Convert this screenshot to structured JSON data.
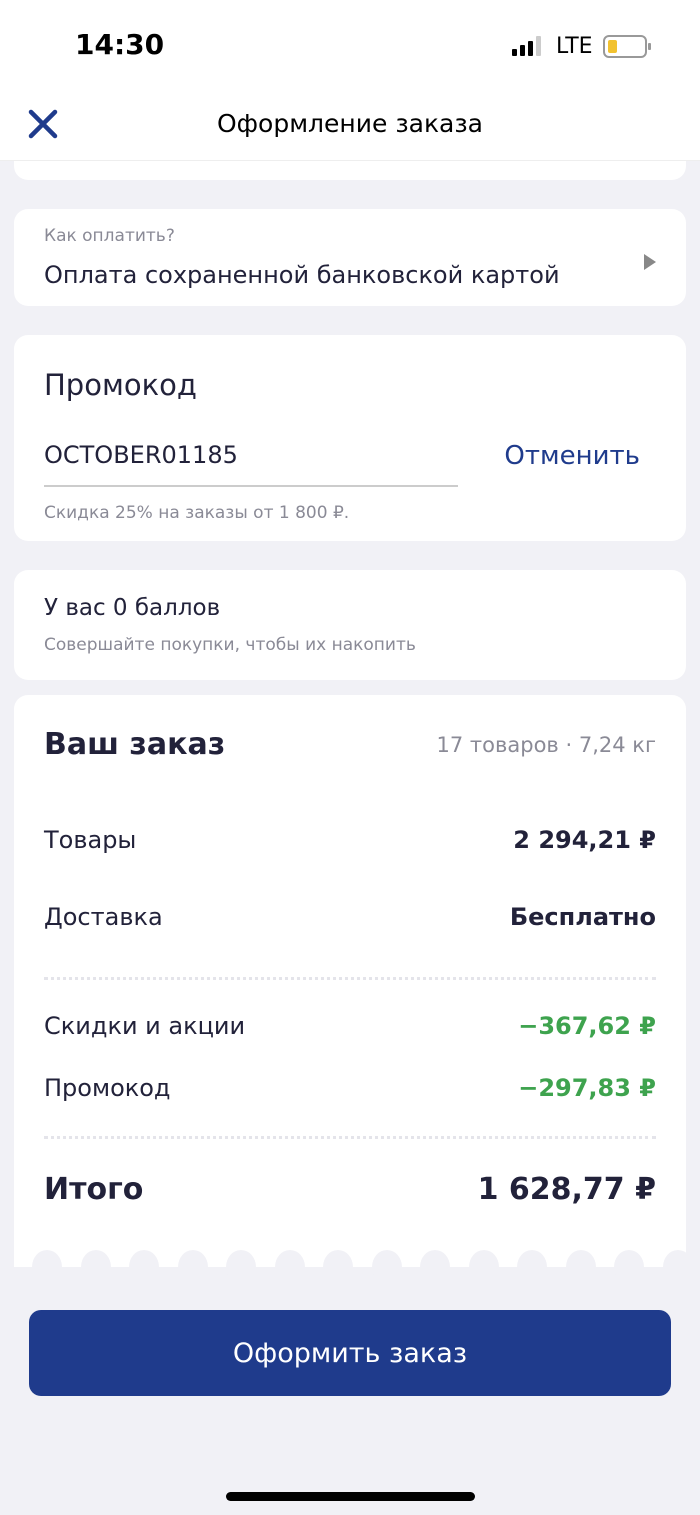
{
  "status_bar": {
    "time": "14:30",
    "network": "LTE",
    "battery_level": 0.2
  },
  "header": {
    "title": "Оформление заказа",
    "close_icon": "close-icon"
  },
  "payment": {
    "label": "Как оплатить?",
    "value": "Оплата сохраненной банковской картой"
  },
  "promo": {
    "title": "Промокод",
    "code": "OCTOBER01185",
    "cancel_label": "Отменить",
    "hint": "Скидка 25% на заказы от 1 800 ₽."
  },
  "points": {
    "title": "У вас 0 баллов",
    "subtitle": "Совершайте покупки, чтобы их накопить"
  },
  "order": {
    "title": "Ваш заказ",
    "meta": "17 товаров · 7,24 кг",
    "goods_label": "Товары",
    "goods_value": "2 294,21 ₽",
    "delivery_label": "Доставка",
    "delivery_value": "Бесплатно",
    "discounts_label": "Скидки и акции",
    "discounts_value": "−367,62 ₽",
    "promo_label": "Промокод",
    "promo_value": "−297,83 ₽",
    "total_label": "Итого",
    "total_value": "1 628,77 ₽"
  },
  "submit_label": "Оформить заказ",
  "colors": {
    "accent": "#1f3b8c",
    "discount": "#3ea34e",
    "background": "#f1f1f6"
  }
}
